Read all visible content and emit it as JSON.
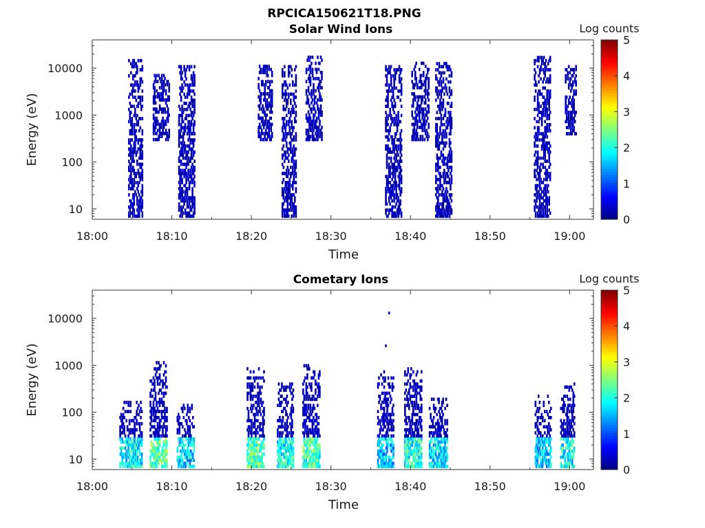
{
  "figure_title": "RPCICA150621T18.PNG",
  "chart_data": [
    {
      "type": "heatmap",
      "title": "Solar Wind Ions",
      "xlabel": "Time",
      "ylabel": "Energy (eV)",
      "x_ticks": [
        "18:00",
        "18:10",
        "18:20",
        "18:30",
        "18:40",
        "18:50",
        "19:00"
      ],
      "xlim_minutes": [
        0,
        63
      ],
      "yscale": "log",
      "ylim": [
        6,
        40000
      ],
      "y_ticks": [
        10,
        100,
        1000,
        10000
      ],
      "y_tick_labels": [
        "10",
        "100",
        "1000",
        "10000"
      ],
      "colorbar": {
        "label": "Log counts",
        "range": [
          0,
          5
        ],
        "ticks": [
          "0",
          "1",
          "2",
          "3",
          "4",
          "5"
        ]
      },
      "bursts": [
        {
          "t_start_min": 4.5,
          "t_end_min": 6.2,
          "e_min": 7,
          "e_max": 16000,
          "log_counts": 0.3
        },
        {
          "t_start_min": 7.6,
          "t_end_min": 9.6,
          "e_min": 300,
          "e_max": 8000,
          "log_counts": 0.3
        },
        {
          "t_start_min": 10.8,
          "t_end_min": 12.8,
          "e_min": 7,
          "e_max": 12000,
          "log_counts": 0.3
        },
        {
          "t_start_min": 20.8,
          "t_end_min": 22.6,
          "e_min": 300,
          "e_max": 12000,
          "log_counts": 0.3
        },
        {
          "t_start_min": 23.8,
          "t_end_min": 25.6,
          "e_min": 7,
          "e_max": 12000,
          "log_counts": 0.3
        },
        {
          "t_start_min": 26.8,
          "t_end_min": 28.8,
          "e_min": 300,
          "e_max": 18000,
          "log_counts": 0.3
        },
        {
          "t_start_min": 36.8,
          "t_end_min": 38.8,
          "e_min": 7,
          "e_max": 12000,
          "log_counts": 0.3
        },
        {
          "t_start_min": 40.1,
          "t_end_min": 42.3,
          "e_min": 300,
          "e_max": 14000,
          "log_counts": 0.3
        },
        {
          "t_start_min": 43.1,
          "t_end_min": 45.1,
          "e_min": 7,
          "e_max": 14000,
          "log_counts": 0.3
        },
        {
          "t_start_min": 55.5,
          "t_end_min": 57.5,
          "e_min": 7,
          "e_max": 18000,
          "log_counts": 0.3
        },
        {
          "t_start_min": 59.4,
          "t_end_min": 60.8,
          "e_min": 400,
          "e_max": 12000,
          "log_counts": 0.3
        }
      ]
    },
    {
      "type": "heatmap",
      "title": "Cometary Ions",
      "xlabel": "Time",
      "ylabel": "Energy (eV)",
      "x_ticks": [
        "18:00",
        "18:10",
        "18:20",
        "18:30",
        "18:40",
        "18:50",
        "19:00"
      ],
      "xlim_minutes": [
        0,
        63
      ],
      "yscale": "log",
      "ylim": [
        6,
        40000
      ],
      "y_ticks": [
        10,
        100,
        1000,
        10000
      ],
      "y_tick_labels": [
        "10",
        "100",
        "1000",
        "10000"
      ],
      "colorbar": {
        "label": "Log counts",
        "range": [
          0,
          5
        ],
        "ticks": [
          "0",
          "1",
          "2",
          "3",
          "4",
          "5"
        ]
      },
      "bursts": [
        {
          "t_start_min": 3.4,
          "t_end_min": 6.2,
          "e_min": 7,
          "e_max": 180,
          "log_counts": 2.4
        },
        {
          "t_start_min": 7.2,
          "t_end_min": 9.4,
          "e_min": 7,
          "e_max": 1200,
          "log_counts": 2.9
        },
        {
          "t_start_min": 10.6,
          "t_end_min": 12.8,
          "e_min": 7,
          "e_max": 150,
          "log_counts": 2.3
        },
        {
          "t_start_min": 19.4,
          "t_end_min": 21.6,
          "e_min": 7,
          "e_max": 900,
          "log_counts": 2.8
        },
        {
          "t_start_min": 23.2,
          "t_end_min": 25.2,
          "e_min": 7,
          "e_max": 500,
          "log_counts": 2.5
        },
        {
          "t_start_min": 26.4,
          "t_end_min": 28.6,
          "e_min": 7,
          "e_max": 1000,
          "log_counts": 2.8
        },
        {
          "t_start_min": 35.8,
          "t_end_min": 37.8,
          "e_min": 7,
          "e_max": 800,
          "log_counts": 2.2
        },
        {
          "t_start_min": 39.2,
          "t_end_min": 41.4,
          "e_min": 7,
          "e_max": 900,
          "log_counts": 2.6
        },
        {
          "t_start_min": 42.3,
          "t_end_min": 44.6,
          "e_min": 7,
          "e_max": 200,
          "log_counts": 2.3
        },
        {
          "t_start_min": 55.6,
          "t_end_min": 57.6,
          "e_min": 7,
          "e_max": 250,
          "log_counts": 2.2
        },
        {
          "t_start_min": 58.8,
          "t_end_min": 60.6,
          "e_min": 7,
          "e_max": 500,
          "log_counts": 2.5
        }
      ],
      "isolated_points": [
        {
          "t_min": 37.2,
          "energy": 13000
        },
        {
          "t_min": 36.8,
          "energy": 2600
        }
      ]
    }
  ]
}
